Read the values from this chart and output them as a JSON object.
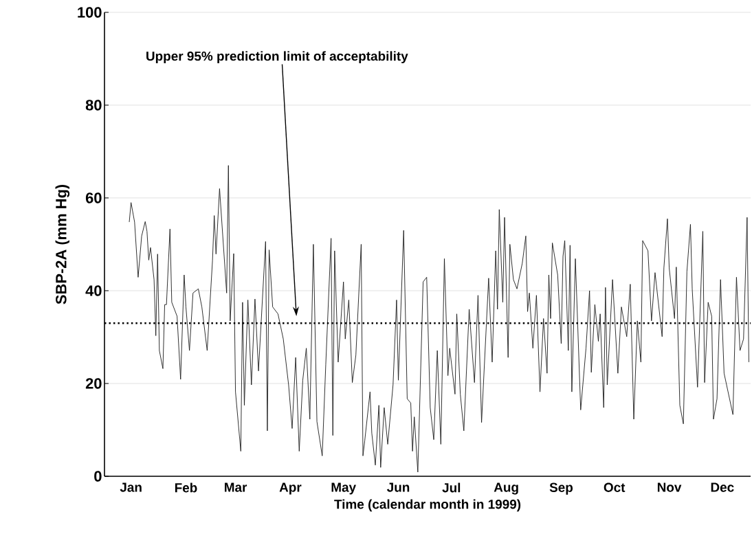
{
  "chart_data": {
    "type": "line",
    "xlabel": "Time (calendar month in 1999)",
    "ylabel": "SBP-2A (mm Hg)",
    "color": "#1a1a1a",
    "marker": "none",
    "line_style": "solid",
    "grid": "y",
    "xlim": [
      "1998-12-31",
      "1999-12-31"
    ],
    "ylim": [
      0,
      100
    ],
    "yticks": [
      0,
      20,
      40,
      60,
      80,
      100
    ],
    "xticks": [
      {
        "value": "1999-01-15",
        "label": "Jan"
      },
      {
        "value": "1999-02-15",
        "label": "Feb"
      },
      {
        "value": "1999-03-15",
        "label": "Mar"
      },
      {
        "value": "1999-04-15",
        "label": "Apr"
      },
      {
        "value": "1999-05-15",
        "label": "May"
      },
      {
        "value": "1999-06-15",
        "label": "Jun"
      },
      {
        "value": "1999-07-15",
        "label": "Jul"
      },
      {
        "value": "1999-08-15",
        "label": "Aug"
      },
      {
        "value": "1999-09-15",
        "label": "Sep"
      },
      {
        "value": "1999-10-15",
        "label": "Oct"
      },
      {
        "value": "1999-11-15",
        "label": "Nov"
      },
      {
        "value": "1999-12-15",
        "label": "Dec"
      }
    ],
    "x": [
      "1999-01-14",
      "1999-01-15",
      "1999-01-17",
      "1999-01-19",
      "1999-01-21",
      "1999-01-23",
      "1999-01-24",
      "1999-01-25",
      "1999-01-26",
      "1999-01-28",
      "1999-01-29",
      "1999-01-30",
      "1999-01-31",
      "1999-02-02",
      "1999-02-03",
      "1999-02-04",
      "1999-02-06",
      "1999-02-07",
      "1999-02-10",
      "1999-02-12",
      "1999-02-14",
      "1999-02-15",
      "1999-02-17",
      "1999-02-19",
      "1999-02-22",
      "1999-02-24",
      "1999-02-27",
      "1999-03-02",
      "1999-03-03",
      "1999-03-04",
      "1999-03-06",
      "1999-03-10",
      "1999-03-11",
      "1999-03-12",
      "1999-03-14",
      "1999-03-15",
      "1999-03-18",
      "1999-03-19",
      "1999-03-20",
      "1999-03-22",
      "1999-03-24",
      "1999-03-26",
      "1999-03-28",
      "1999-04-01",
      "1999-04-02",
      "1999-04-03",
      "1999-04-05",
      "1999-04-08",
      "1999-04-11",
      "1999-04-14",
      "1999-04-16",
      "1999-04-18",
      "1999-04-20",
      "1999-04-22",
      "1999-04-24",
      "1999-04-26",
      "1999-04-28",
      "1999-04-30",
      "1999-05-03",
      "1999-05-05",
      "1999-05-08",
      "1999-05-09",
      "1999-05-10",
      "1999-05-12",
      "1999-05-15",
      "1999-05-16",
      "1999-05-18",
      "1999-05-20",
      "1999-05-22",
      "1999-05-25",
      "1999-05-26",
      "1999-05-27",
      "1999-05-30",
      "1999-05-31",
      "1999-06-02",
      "1999-06-04",
      "1999-06-05",
      "1999-06-07",
      "1999-06-09",
      "1999-06-12",
      "1999-06-14",
      "1999-06-15",
      "1999-06-18",
      "1999-06-20",
      "1999-06-22",
      "1999-06-23",
      "1999-06-24",
      "1999-06-26",
      "1999-06-29",
      "1999-07-01",
      "1999-07-03",
      "1999-07-05",
      "1999-07-07",
      "1999-07-09",
      "1999-07-11",
      "1999-07-13",
      "1999-07-14",
      "1999-07-17",
      "1999-07-18",
      "1999-07-20",
      "1999-07-22",
      "1999-07-25",
      "1999-07-28",
      "1999-07-30",
      "1999-08-01",
      "1999-08-05",
      "1999-08-07",
      "1999-08-09",
      "1999-08-10",
      "1999-08-11",
      "1999-08-13",
      "1999-08-14",
      "1999-08-16",
      "1999-08-17",
      "1999-08-19",
      "1999-08-21",
      "1999-08-24",
      "1999-08-26",
      "1999-08-27",
      "1999-08-28",
      "1999-08-30",
      "1999-09-01",
      "1999-09-03",
      "1999-09-05",
      "1999-09-07",
      "1999-09-08",
      "1999-09-09",
      "1999-09-10",
      "1999-09-13",
      "1999-09-15",
      "1999-09-16",
      "1999-09-17",
      "1999-09-19",
      "1999-09-20",
      "1999-09-21",
      "1999-09-23",
      "1999-09-26",
      "1999-09-29",
      "1999-10-01",
      "1999-10-02",
      "1999-10-04",
      "1999-10-06",
      "1999-10-07",
      "1999-10-09",
      "1999-10-10",
      "1999-10-11",
      "1999-10-14",
      "1999-10-17",
      "1999-10-19",
      "1999-10-22",
      "1999-10-24",
      "1999-10-26",
      "1999-10-28",
      "1999-10-30",
      "1999-10-31",
      "1999-11-03",
      "1999-11-05",
      "1999-11-07",
      "1999-11-11",
      "1999-11-12",
      "1999-11-14",
      "1999-11-15",
      "1999-11-18",
      "1999-11-19",
      "1999-11-21",
      "1999-11-23",
      "1999-11-25",
      "1999-11-27",
      "1999-11-28",
      "1999-12-01",
      "1999-12-04",
      "1999-12-05",
      "1999-12-07",
      "1999-12-09",
      "1999-12-10",
      "1999-12-12",
      "1999-12-14",
      "1999-12-16",
      "1999-12-21",
      "1999-12-23",
      "1999-12-25",
      "1999-12-27",
      "1999-12-29",
      "1999-12-30"
    ],
    "values": [
      54.8,
      59,
      54.8,
      42.9,
      51.8,
      54.9,
      52.8,
      46.6,
      49.3,
      42.4,
      30.3,
      47.9,
      27.1,
      23.2,
      37,
      37,
      53.3,
      37.5,
      34.5,
      20.9,
      43.4,
      36.5,
      27.1,
      39.5,
      40.4,
      36.5,
      27.1,
      46.4,
      56.2,
      47.9,
      62,
      39.5,
      67,
      33.5,
      48,
      18.2,
      5.4,
      37.5,
      15.3,
      38,
      19.7,
      38.2,
      22.7,
      50.6,
      9.8,
      48.8,
      36.5,
      35,
      29.6,
      19.7,
      10.3,
      25.6,
      5.4,
      20.7,
      27.6,
      12.3,
      50,
      11.8,
      4.4,
      24.1,
      51.3,
      8.8,
      48.6,
      24.6,
      41.9,
      29.6,
      38,
      20.2,
      26.1,
      50,
      4.4,
      7.6,
      18.2,
      9.3,
      2.4,
      15.3,
      1.9,
      14.8,
      6.9,
      19.7,
      38,
      20.7,
      53,
      16.7,
      15.8,
      5.4,
      12.8,
      0.9,
      41.9,
      42.9,
      14.8,
      7.9,
      27.1,
      6.9,
      46.9,
      21.7,
      27.6,
      17.7,
      35,
      17.7,
      9.8,
      36,
      20.2,
      39,
      11.6,
      42.7,
      24.6,
      48.6,
      36,
      57.5,
      37.5,
      55.8,
      25.6,
      50,
      42.4,
      40.4,
      45.9,
      51.8,
      35.5,
      39.5,
      27.6,
      39,
      18.2,
      34,
      22.2,
      43.4,
      34,
      50.3,
      43.4,
      28.6,
      47.4,
      50.8,
      27.1,
      49.8,
      18.2,
      46.9,
      14.3,
      27.6,
      40,
      22.4,
      37,
      29.1,
      35,
      14.8,
      40.7,
      19.7,
      42.4,
      22.2,
      36.5,
      30.1,
      41.4,
      12.3,
      33.5,
      24.6,
      50.8,
      48.6,
      33.5,
      43.9,
      30.1,
      44.9,
      55.5,
      44.9,
      34,
      45.1,
      15.3,
      11.3,
      44.1,
      54.3,
      40.4,
      19.2,
      52.8,
      20.2,
      37.5,
      34.5,
      12.3,
      16.7,
      42.4,
      22.2,
      13.3,
      42.9,
      27.1,
      29.6,
      55.8,
      24.6
    ],
    "ref_lines": [
      {
        "axis": "y",
        "value": 33,
        "line_style": "dotted",
        "color": "#000000"
      }
    ],
    "annotations": [
      "Upper 95% prediction limit of acceptability"
    ]
  }
}
